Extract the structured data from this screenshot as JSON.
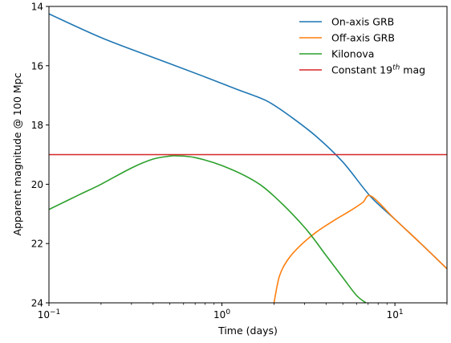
{
  "chart_data": {
    "type": "line",
    "xlabel": "Time (days)",
    "ylabel": "Apparent magnitude @ 100 Mpc",
    "xscale": "log",
    "xlim": [
      0.1,
      20
    ],
    "ylim": [
      24,
      14
    ],
    "y_inverted": true,
    "grid": false,
    "legend_position": "top-right",
    "x_ticks": [
      {
        "value": 0.1,
        "base": "10",
        "exp": "−1"
      },
      {
        "value": 1,
        "base": "10",
        "exp": "0"
      },
      {
        "value": 10,
        "base": "10",
        "exp": "1"
      }
    ],
    "y_ticks": [
      {
        "value": 14,
        "label": "14"
      },
      {
        "value": 16,
        "label": "16"
      },
      {
        "value": 18,
        "label": "18"
      },
      {
        "value": 20,
        "label": "20"
      },
      {
        "value": 22,
        "label": "22"
      },
      {
        "value": 24,
        "label": "24"
      }
    ],
    "series": [
      {
        "name": "On-axis GRB",
        "color": "#1f77b4",
        "x": [
          0.1,
          0.2,
          0.4,
          0.8,
          1.2,
          1.6,
          1.9,
          2.5,
          3.5,
          5.0,
          7.2,
          10.0,
          14.0,
          20.0
        ],
        "y": [
          14.25,
          15.05,
          15.72,
          16.38,
          16.78,
          17.05,
          17.25,
          17.72,
          18.38,
          19.25,
          20.4,
          21.18,
          21.98,
          22.85
        ]
      },
      {
        "name": "Off-axis GRB",
        "color": "#ff7f0e",
        "x": [
          2.0,
          2.15,
          2.4,
          2.8,
          3.5,
          4.5,
          5.5,
          6.5,
          7.3,
          10.0,
          14.0,
          20.0
        ],
        "y": [
          24.0,
          23.1,
          22.55,
          22.1,
          21.62,
          21.2,
          20.9,
          20.62,
          20.4,
          21.18,
          21.98,
          22.85
        ]
      },
      {
        "name": "Kilonova",
        "color": "#2ca02c",
        "x": [
          0.1,
          0.15,
          0.2,
          0.3,
          0.4,
          0.5,
          0.55,
          0.7,
          1.0,
          1.5,
          2.0,
          3.0,
          4.0,
          5.0,
          6.0,
          6.8
        ],
        "y": [
          20.85,
          20.35,
          20.0,
          19.45,
          19.15,
          19.05,
          19.04,
          19.1,
          19.37,
          19.85,
          20.4,
          21.45,
          22.4,
          23.15,
          23.75,
          24.0
        ]
      },
      {
        "name": "Constant 19",
        "name_sup": "th",
        "name_suffix": " mag",
        "color": "#d62728",
        "x": [
          0.1,
          20.0
        ],
        "y": [
          19.0,
          19.0
        ]
      }
    ]
  }
}
